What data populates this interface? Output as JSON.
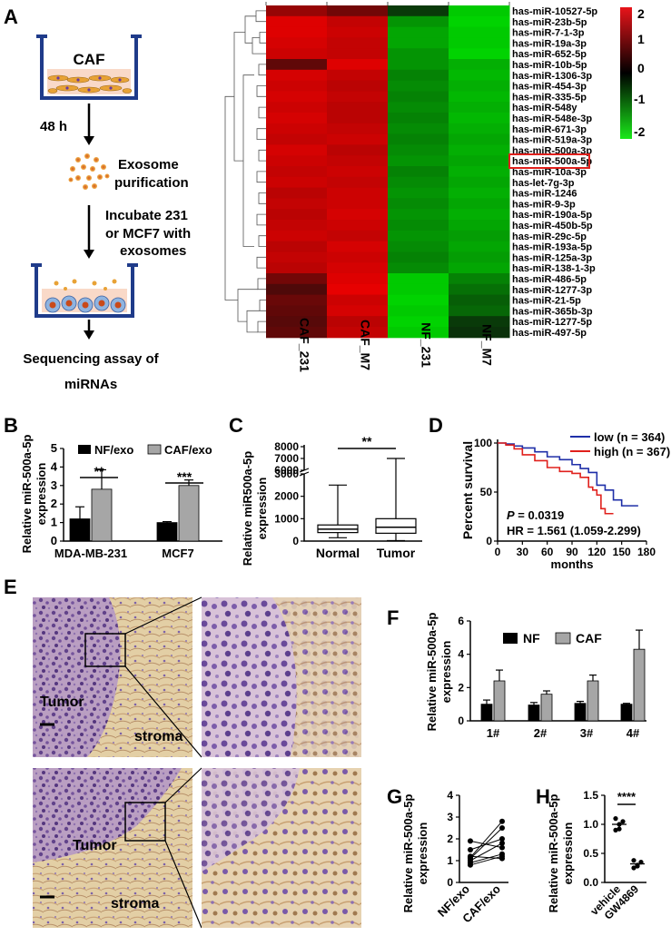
{
  "colors": {
    "heat_red": "#c0141a",
    "heat_green": "#19c419",
    "bar_black": "#000000",
    "bar_gray": "#a6a6a6",
    "low_line": "#1f2fa8",
    "high_line": "#e0201c",
    "highlight_box": "#e0201c",
    "tissue_purple": "#7a5aa8",
    "tissue_stroma": "#d9b98c"
  },
  "panel_a": {
    "label": "A",
    "caf_label": "CAF",
    "step1": "48 h",
    "step2_line1": "Exosome",
    "step2_line2": "purification",
    "step3_line1": "Incubate 231",
    "step3_line2": "or MCF7 with",
    "step3_line3": "exosomes",
    "step4_line1": "Sequencing assay of",
    "step4_line2": "miRNAs",
    "heatmap_columns": [
      "CAF_231",
      "CAF_M7",
      "NF_231",
      "NF_M7"
    ],
    "heatmap_rows": [
      "has-miR-10527-5p",
      "has-miR-23b-5p",
      "has-miR-7-1-3p",
      "has-miR-19a-3p",
      "has-miR-652-5p",
      "has-miR-10b-5p",
      "has-miR-1306-3p",
      "has-miR-454-3p",
      "has-miR-335-5p",
      "has-miR-548y",
      "has-miR-548e-3p",
      "has-miR-671-3p",
      "has-miR-519a-3p",
      "has-miR-500a-3p",
      "has-miR-500a-5p",
      "has-miR-10a-3p",
      "has-let-7g-3p",
      "has-miR-1246",
      "has-miR-9-3p",
      "has-miR-190a-5p",
      "has-miR-450b-5p",
      "has-miR-29c-5p",
      "has-miR-193a-5p",
      "has-miR-125a-3p",
      "has-miR-138-1-3p",
      "has-miR-486-5p",
      "has-miR-1277-3p",
      "has-miR-21-5p",
      "has-miR-365b-3p",
      "has-miR-1277-5p",
      "has-miR-497-5p"
    ],
    "highlighted_row": "has-miR-500a-5p",
    "scale_ticks": [
      "2",
      "1",
      "0",
      "-1",
      "-2"
    ]
  },
  "panel_b": {
    "label": "B",
    "chart_data": {
      "type": "bar",
      "ylabel_line1": "Relative miR-500a-5p",
      "ylabel_line2": "expression",
      "categories": [
        "MDA-MB-231",
        "MCF7"
      ],
      "series": [
        {
          "name": "NF/exo",
          "values": [
            1.2,
            1.0
          ],
          "errors": [
            0.65,
            0.05
          ]
        },
        {
          "name": "CAF/exo",
          "values": [
            2.8,
            3.0
          ],
          "errors": [
            1.05,
            0.3
          ]
        }
      ],
      "ylim": [
        0,
        5
      ],
      "yticks": [
        "0",
        "1",
        "2",
        "3",
        "4",
        "5"
      ],
      "significance": [
        "**",
        "***"
      ]
    }
  },
  "panel_c": {
    "label": "C",
    "chart_data": {
      "type": "box",
      "ylabel_line1": "Relative miR500a-5p",
      "ylabel_line2": "expression",
      "categories": [
        "Normal",
        "Tumor"
      ],
      "boxes": [
        {
          "min": 150,
          "q1": 380,
          "median": 530,
          "q3": 720,
          "max": 2500
        },
        {
          "min": 20,
          "q1": 350,
          "median": 620,
          "q3": 1000,
          "max": 7000
        }
      ],
      "yticks_lower": [
        "0",
        "1000",
        "2000",
        "3000"
      ],
      "yticks_upper": [
        "6000",
        "7000",
        "8000"
      ],
      "significance": "**"
    }
  },
  "panel_d": {
    "label": "D",
    "chart_data": {
      "type": "line",
      "ylabel": "Percent survival",
      "xlabel": "months",
      "xticks": [
        "0",
        "30",
        "60",
        "90",
        "120",
        "150",
        "180"
      ],
      "yticks": [
        "0",
        "50",
        "100"
      ],
      "xlim": [
        0,
        180
      ],
      "ylim": [
        0,
        100
      ],
      "series": [
        {
          "name": "low (n = 364)",
          "x": [
            0,
            10,
            20,
            30,
            45,
            60,
            75,
            90,
            100,
            110,
            120,
            130,
            140,
            150,
            160,
            170
          ],
          "y": [
            100,
            99,
            97,
            95,
            91,
            86,
            83,
            78,
            74,
            70,
            57,
            52,
            42,
            36,
            36,
            36
          ]
        },
        {
          "name": "high (n = 367)",
          "x": [
            0,
            10,
            20,
            30,
            45,
            60,
            75,
            90,
            100,
            110,
            115,
            120,
            125,
            130,
            140
          ],
          "y": [
            100,
            98,
            94,
            88,
            82,
            75,
            71,
            69,
            65,
            55,
            52,
            47,
            33,
            28,
            28
          ]
        }
      ],
      "p_label": "P",
      "p_value": " = 0.0319",
      "hr": "HR = 1.561 (1.059-2.299)"
    }
  },
  "panel_e": {
    "label": "E",
    "tumor_label": "Tumor",
    "stroma_label": "stroma"
  },
  "panel_f": {
    "label": "F",
    "chart_data": {
      "type": "bar",
      "ylabel_line1": "Relative miR-500a-5p",
      "ylabel_line2": "expression",
      "categories": [
        "1#",
        "2#",
        "3#",
        "4#"
      ],
      "series": [
        {
          "name": "NF",
          "values": [
            1.0,
            0.95,
            1.05,
            1.0
          ],
          "errors": [
            0.25,
            0.15,
            0.12,
            0.05
          ]
        },
        {
          "name": "CAF",
          "values": [
            2.4,
            1.6,
            2.4,
            4.3
          ],
          "errors": [
            0.65,
            0.2,
            0.35,
            1.15
          ]
        }
      ],
      "ylim": [
        0,
        6
      ],
      "yticks": [
        "0",
        "2",
        "4",
        "6"
      ]
    }
  },
  "panel_g": {
    "label": "G",
    "chart_data": {
      "type": "paired-dot",
      "ylabel_line1": "Relative miR-500a-5p",
      "ylabel_line2": "expression",
      "categories": [
        "NF/exo",
        "CAF/exo"
      ],
      "pairs": [
        [
          0.8,
          1.2
        ],
        [
          0.9,
          1.3
        ],
        [
          1.0,
          1.8
        ],
        [
          1.1,
          2.5
        ],
        [
          1.15,
          2.8
        ],
        [
          1.2,
          1.1
        ],
        [
          1.5,
          2.0
        ],
        [
          1.9,
          1.6
        ]
      ],
      "ylim": [
        0,
        4
      ],
      "yticks": [
        "0",
        "1",
        "2",
        "3",
        "4"
      ]
    }
  },
  "panel_h": {
    "label": "H",
    "chart_data": {
      "type": "dot",
      "ylabel_line1": "Relative miR-500a-5p",
      "ylabel_line2": "expression",
      "categories": [
        "vehicle",
        "GW4869"
      ],
      "points": [
        [
          0.9,
          1.0,
          1.05,
          1.1,
          0.92
        ],
        [
          0.25,
          0.3,
          0.35,
          0.38,
          0.28
        ]
      ],
      "means": [
        1.0,
        0.32
      ],
      "ylim": [
        0,
        1.5
      ],
      "yticks": [
        "0.0",
        "0.5",
        "1.0",
        "1.5"
      ],
      "significance": "****"
    }
  }
}
